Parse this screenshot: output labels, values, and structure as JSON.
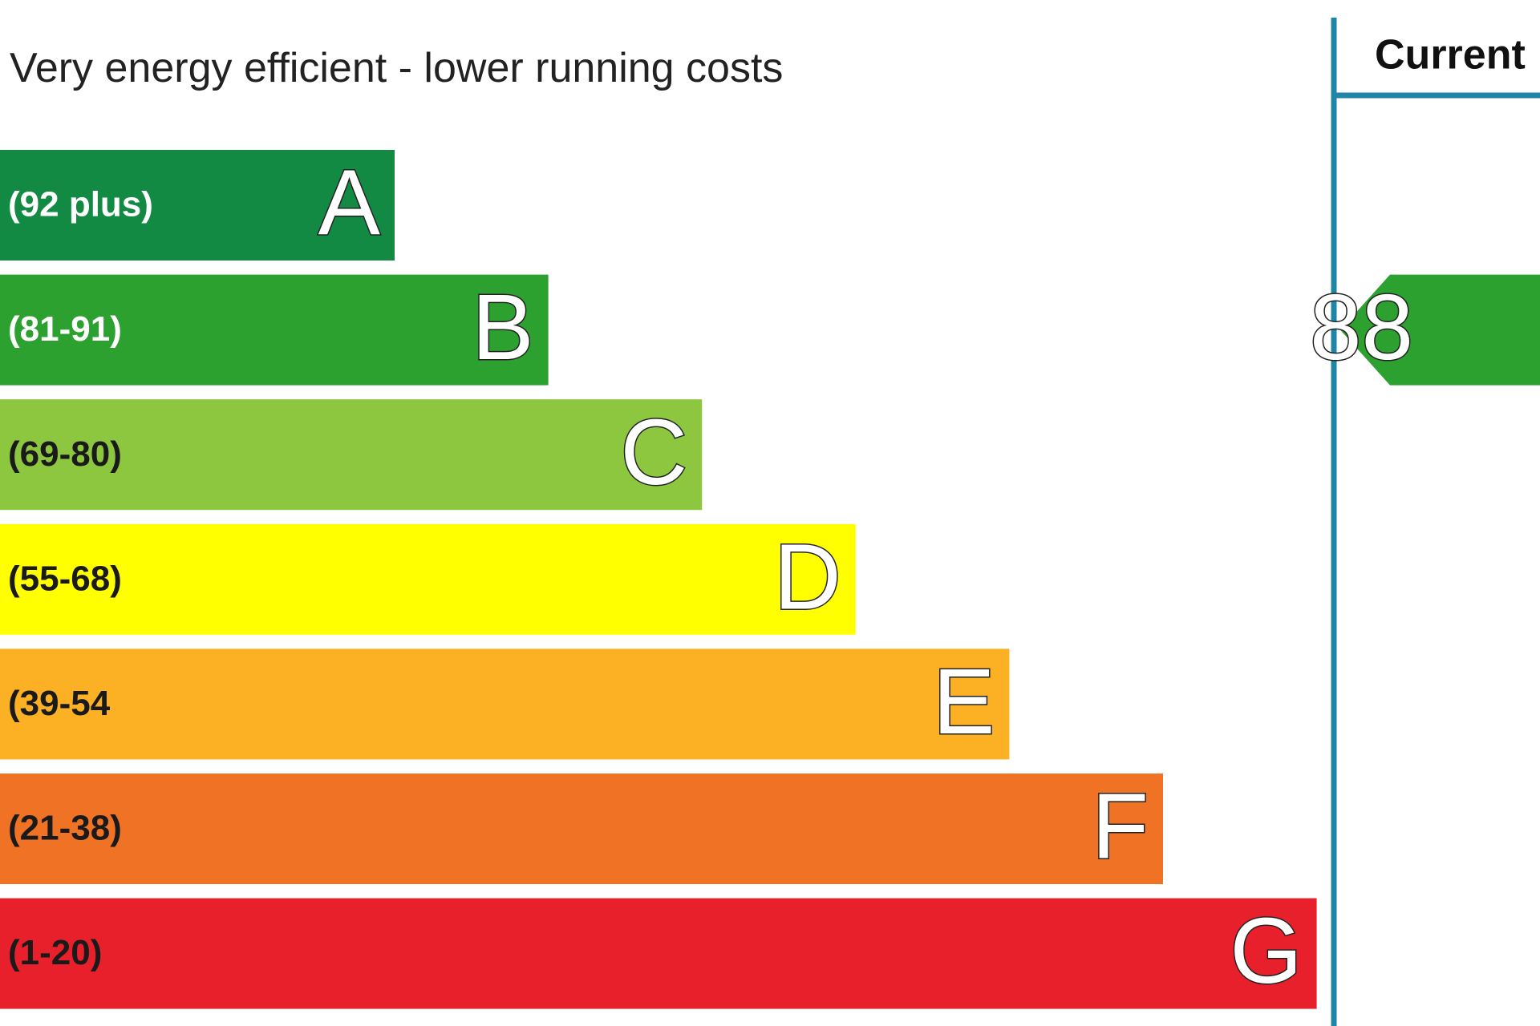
{
  "header": {
    "title": "Very energy efficient - lower running costs"
  },
  "bands": [
    {
      "range": "(92 plus)",
      "letter": "A",
      "color": "#138a43",
      "text_color": "#ffffff"
    },
    {
      "range": "(81-91)",
      "letter": "B",
      "color": "#2ca12f",
      "text_color": "#ffffff"
    },
    {
      "range": "(69-80)",
      "letter": "C",
      "color": "#8dc63f",
      "text_color": "#1a1a1a"
    },
    {
      "range": "(55-68)",
      "letter": "D",
      "color": "#ffff00",
      "text_color": "#1a1a1a"
    },
    {
      "range": "(39-54",
      "letter": "E",
      "color": "#fcb023",
      "text_color": "#1a1a1a"
    },
    {
      "range": "(21-38)",
      "letter": "F",
      "color": "#f07225",
      "text_color": "#1a1a1a"
    },
    {
      "range": "(1-20)",
      "letter": "G",
      "color": "#e8202b",
      "text_color": "#1a1a1a"
    }
  ],
  "current": {
    "label": "Current",
    "rating": 88,
    "band": 1
  }
}
